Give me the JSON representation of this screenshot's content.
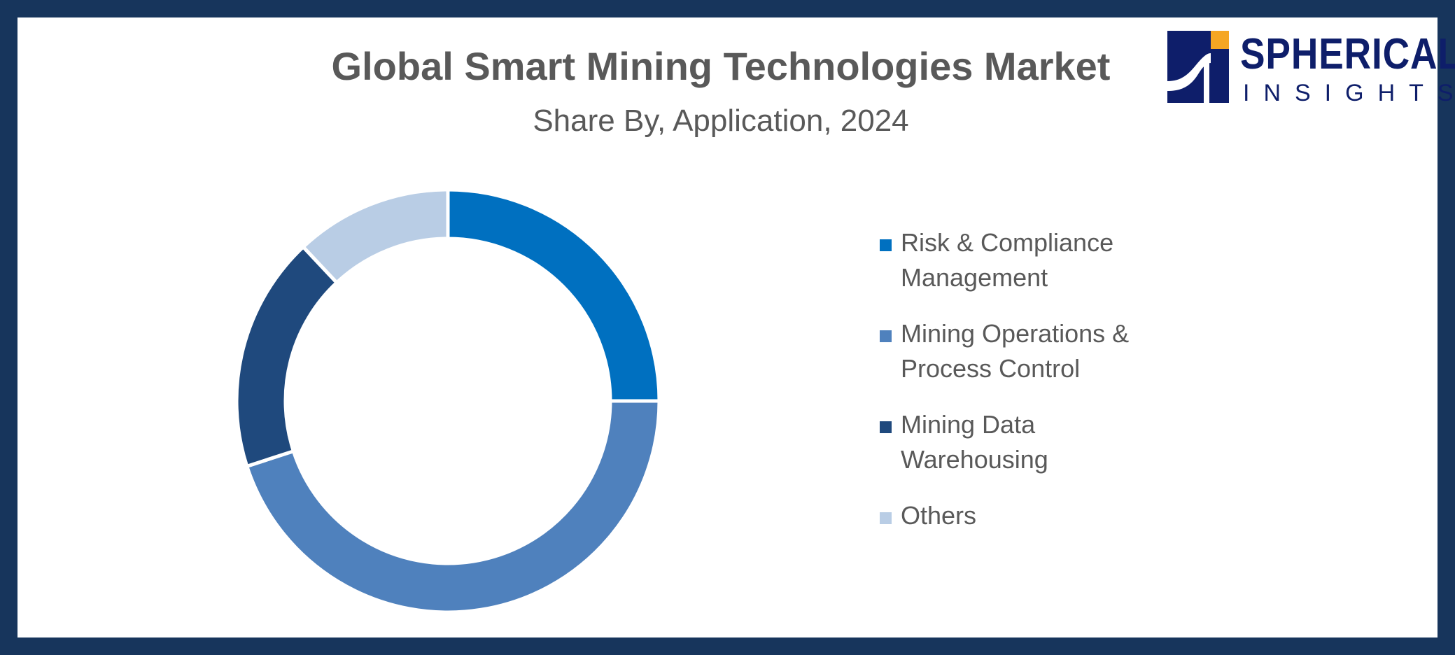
{
  "header": {
    "title": "Global Smart Mining Technologies Market",
    "subtitle": "Share By, Application, 2024"
  },
  "logo": {
    "word1": "SPHERICAL",
    "word2": "INSIGHTS",
    "icon": "spherical-insights-logo-icon",
    "colors": {
      "primary": "#0e1e6a",
      "accent": "#f5a623"
    }
  },
  "colors": {
    "frame": "#17355c",
    "background": "#ffffff",
    "text": "#595959"
  },
  "chart_data": {
    "type": "pie",
    "style": "donut",
    "title": "Global Smart Mining Technologies Market",
    "subtitle": "Share By, Application, 2024",
    "legend_position": "right",
    "categories": [
      "Risk & Compliance Management",
      "Mining Operations & Process Control",
      "Mining Data Warehousing",
      "Others"
    ],
    "values": [
      25,
      45,
      18,
      12
    ],
    "colors": [
      "#0070c0",
      "#4f81bd",
      "#1f497d",
      "#b9cde5"
    ]
  }
}
